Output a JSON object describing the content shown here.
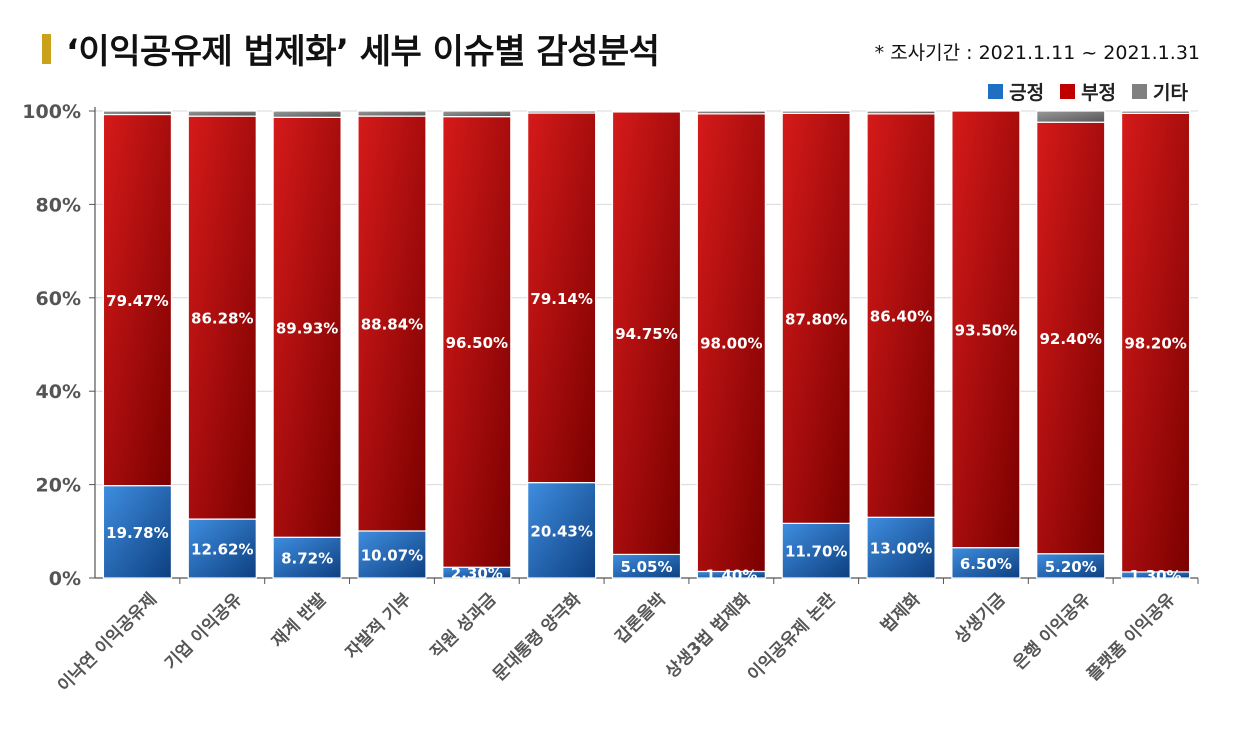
{
  "chart_data": {
    "type": "bar",
    "stacked": true,
    "title": "‘이익공유제 법제화’ 세부 이슈별 감성분석",
    "subtitle": "* 조사기간 : 2021.1.11 ~ 2021.1.31",
    "xlabel": "",
    "ylabel": "",
    "ylim": [
      0,
      100
    ],
    "yticks": [
      "0%",
      "20%",
      "40%",
      "60%",
      "80%",
      "100%"
    ],
    "grid": true,
    "legend_position": "top-right",
    "categories": [
      "이낙연 이익공유제",
      "기업 이익공유",
      "재계 반발",
      "자발적 기부",
      "직원 성과금",
      "문대통령 양극화",
      "갑론을박",
      "상생3법 법제화",
      "이익공유제 논란",
      "법제화",
      "상생기금",
      "은행 이익공유",
      "플랫폼 이익공유"
    ],
    "series": [
      {
        "name": "긍정",
        "color": "#1f6fc2",
        "values": [
          19.78,
          12.62,
          8.72,
          10.07,
          2.3,
          20.43,
          5.05,
          1.4,
          11.7,
          13.0,
          6.5,
          5.2,
          1.3
        ],
        "labels": [
          "19.78%",
          "12.62%",
          "8.72%",
          "10.07%",
          "2.30%",
          "20.43%",
          "5.05%",
          "1.40%",
          "11.70%",
          "13.00%",
          "6.50%",
          "5.20%",
          "1.30%"
        ]
      },
      {
        "name": "부정",
        "color": "#c00000",
        "values": [
          79.47,
          86.28,
          89.93,
          88.84,
          96.5,
          79.14,
          94.75,
          98.0,
          87.8,
          86.4,
          93.5,
          92.4,
          98.2
        ],
        "labels": [
          "79.47%",
          "86.28%",
          "89.93%",
          "88.84%",
          "96.50%",
          "79.14%",
          "94.75%",
          "98.00%",
          "87.80%",
          "86.40%",
          "93.50%",
          "92.40%",
          "98.20%"
        ]
      },
      {
        "name": "기타",
        "color": "#808080",
        "values": [
          0.75,
          1.1,
          1.35,
          1.09,
          1.2,
          0.43,
          0.2,
          0.6,
          0.5,
          0.6,
          0.0,
          2.4,
          0.5
        ]
      }
    ]
  }
}
